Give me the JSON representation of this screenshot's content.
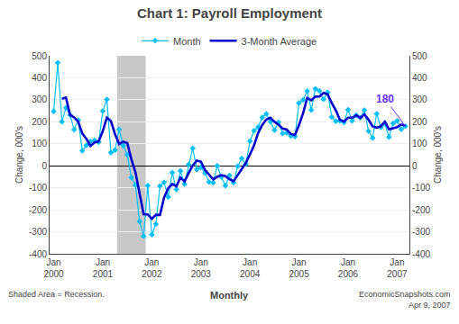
{
  "chart_data": {
    "type": "line",
    "title": "Chart 1: Payroll Employment",
    "y_label": "Change, 000's",
    "y2_label": "Change, 000's",
    "categories": [
      "Jan\n2000",
      null,
      null,
      null,
      null,
      null,
      null,
      null,
      null,
      null,
      null,
      null,
      "Jan\n2001",
      null,
      null,
      null,
      null,
      null,
      null,
      null,
      null,
      null,
      null,
      null,
      "Jan\n2002",
      null,
      null,
      null,
      null,
      null,
      null,
      null,
      null,
      null,
      null,
      null,
      "Jan\n2003",
      null,
      null,
      null,
      null,
      null,
      null,
      null,
      null,
      null,
      null,
      null,
      "Jan\n2004",
      null,
      null,
      null,
      null,
      null,
      null,
      null,
      null,
      null,
      null,
      null,
      "Jan\n2005",
      null,
      null,
      null,
      null,
      null,
      null,
      null,
      null,
      null,
      null,
      null,
      "Jan\n2006",
      null,
      null,
      null,
      null,
      null,
      null,
      null,
      null,
      null,
      null,
      null,
      "Jan\n2007",
      null,
      null
    ],
    "series": [
      {
        "name": "Month",
        "color": "#00BFFF",
        "marker": "diamond",
        "line_style": "solid",
        "values": [
          247,
          468,
          200,
          264,
          231,
          165,
          207,
          68,
          93,
          110,
          116,
          107,
          248,
          302,
          60,
          71,
          166,
          92,
          51,
          -53,
          -88,
          -253,
          -320,
          -90,
          -313,
          -265,
          -92,
          -75,
          -141,
          -31,
          -107,
          -24,
          -83,
          6,
          80,
          -16,
          -7,
          -33,
          -74,
          -77,
          0,
          -50,
          -90,
          -44,
          -77,
          -2,
          34,
          8,
          112,
          159,
          176,
          220,
          236,
          200,
          163,
          198,
          147,
          150,
          136,
          133,
          285,
          300,
          339,
          254,
          350,
          340,
          303,
          333,
          222,
          202,
          204,
          197,
          255,
          204,
          230,
          219,
          252,
          158,
          127,
          236,
          175,
          191,
          131,
          193,
          204,
          166,
          180
        ]
      },
      {
        "name": "3-Month Average",
        "color": "#0000CD",
        "line_style": "solid",
        "values": [
          null,
          null,
          305,
          310.6666666666667,
          231.66666666666666,
          220,
          201,
          146.66666666666666,
          122.66666666666667,
          90.33333333333333,
          106.33333333333333,
          111,
          157,
          219,
          203.33333333333334,
          144.33333333333334,
          99,
          109.66666666666667,
          103,
          30,
          -30,
          -131.33333333333334,
          -220.33333333333334,
          -221,
          -241,
          -222.66666666666666,
          -223.33333333333334,
          -144,
          -102.66666666666667,
          -82.33333333333333,
          -93,
          -54,
          -71.33333333333333,
          -33.666666666666664,
          1,
          23.333333333333332,
          19,
          -18.666666666666668,
          -38,
          -61.333333333333336,
          -50.333333333333336,
          -42.333333333333336,
          -46.666666666666664,
          -61.333333333333336,
          -70.33333333333333,
          -41,
          -15,
          13.333333333333334,
          51.333333333333336,
          93,
          149,
          185,
          210.66666666666666,
          218.66666666666666,
          199.66666666666666,
          187,
          169.33333333333334,
          165,
          144.33333333333334,
          139.66666666666666,
          184.66666666666666,
          239.33333333333334,
          308,
          297.6666666666667,
          314.3333333333333,
          314.6666666666667,
          331,
          325.3333333333333,
          286,
          252.33333333333334,
          209.33333333333334,
          201,
          218.66666666666666,
          218.66666666666666,
          229.66666666666666,
          217.66666666666666,
          233.66666666666666,
          209.66666666666666,
          179,
          173.66666666666666,
          179.33333333333334,
          200.66666666666666,
          165.66666666666666,
          171.66666666666666,
          176,
          187.66666666666666,
          183.33333333333334
        ]
      }
    ],
    "ylim": [
      -400,
      500
    ],
    "yticks": [
      -400,
      -300,
      -200,
      -100,
      0,
      100,
      200,
      300,
      400,
      500
    ],
    "y2lim": [
      -400,
      500
    ],
    "y2ticks": [
      -400,
      -300,
      -200,
      -100,
      0,
      100,
      200,
      300,
      400,
      500
    ],
    "grid": true,
    "legend": "top",
    "recession": {
      "start": 16,
      "end": 22,
      "color": "#C8C8C8"
    },
    "annotations": [
      {
        "text": "180",
        "color": "#6633FF",
        "x": 86,
        "y": 180
      }
    ],
    "footer": {
      "left": "Shaded Area = Recession.",
      "center": "Monthly",
      "right": "EconomicSnapshots.com\nApr 9, 2007"
    }
  }
}
